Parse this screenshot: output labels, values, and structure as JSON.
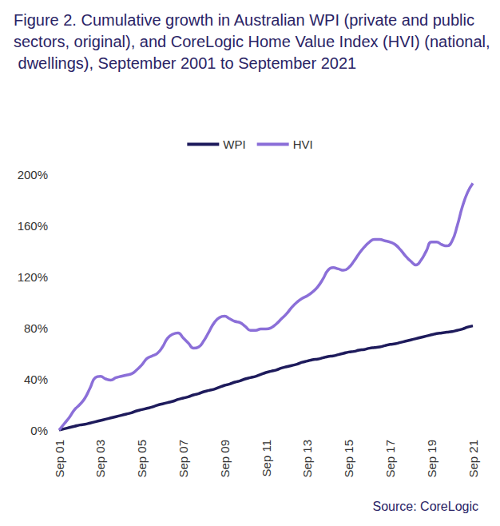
{
  "chart_data": {
    "type": "line",
    "title": "Figure 2. Cumulative growth in Australian WPI (private and public sectors, original), and CoreLogic Home Value Index (HVI) (national, dwellings), September 2001 to September 2021",
    "source": "Source: CoreLogic",
    "categories": [
      "Sep 01",
      null,
      null,
      null,
      null,
      null,
      null,
      null,
      "Sep 03",
      null,
      null,
      null,
      null,
      null,
      null,
      null,
      "Sep 05",
      null,
      null,
      null,
      null,
      null,
      null,
      null,
      "Sep 07",
      null,
      null,
      null,
      null,
      null,
      null,
      null,
      "Sep 09",
      null,
      null,
      null,
      null,
      null,
      null,
      null,
      "Sep 11",
      null,
      null,
      null,
      null,
      null,
      null,
      null,
      "Sep 13",
      null,
      null,
      null,
      null,
      null,
      null,
      null,
      "Sep 15",
      null,
      null,
      null,
      null,
      null,
      null,
      null,
      "Sep 17",
      null,
      null,
      null,
      null,
      null,
      null,
      null,
      "Sep 19",
      null,
      null,
      null,
      null,
      null,
      null,
      null,
      "Sep 21"
    ],
    "series": [
      {
        "name": "WPI",
        "color": "#1e1b5c",
        "values": [
          0,
          1,
          2,
          3,
          4,
          4.5,
          5.5,
          6.5,
          7.5,
          8.5,
          9.5,
          10.5,
          11.5,
          12.5,
          13.5,
          15,
          16,
          17,
          18,
          19.5,
          20.5,
          21.5,
          22.5,
          24,
          25,
          26,
          27.5,
          28.5,
          30,
          31,
          32,
          33.5,
          35,
          36,
          37.5,
          38.5,
          40,
          41,
          42,
          43.5,
          45,
          46,
          47,
          48.5,
          49.5,
          50.5,
          51.5,
          53,
          54,
          55,
          55.5,
          56.5,
          57.5,
          58,
          59,
          60,
          61,
          61.5,
          62.5,
          63,
          64,
          64.5,
          65,
          66,
          67,
          67.5,
          68.5,
          69.5,
          70.5,
          71.5,
          72.5,
          73.5,
          74.5,
          75.5,
          76,
          76.5,
          77,
          78,
          79,
          80.5,
          81.5
        ]
      },
      {
        "name": "HVI",
        "color": "#8b6fd8",
        "values": [
          0,
          5,
          10,
          16,
          20,
          25,
          33,
          41,
          42,
          40,
          39,
          41,
          42,
          43,
          44,
          47,
          51,
          56,
          58,
          60,
          65,
          72,
          75,
          76,
          72,
          68,
          64,
          65,
          70,
          77,
          84,
          88,
          89,
          87,
          85,
          84,
          81,
          78,
          78,
          79,
          79,
          80,
          83,
          87,
          91,
          96,
          100,
          103,
          105,
          108,
          112,
          118,
          125,
          127,
          126,
          125,
          127,
          132,
          138,
          143,
          147,
          149,
          149,
          148,
          147,
          145,
          141,
          136,
          132,
          129,
          133,
          140,
          147,
          147,
          145,
          144,
          148,
          160,
          175,
          186,
          193
        ]
      }
    ],
    "ylim": [
      0,
      200
    ],
    "yticks": [
      {
        "value": 0,
        "label": "0%"
      },
      {
        "value": 40,
        "label": "40%"
      },
      {
        "value": 80,
        "label": "80%"
      },
      {
        "value": 120,
        "label": "120%"
      },
      {
        "value": 160,
        "label": "160%"
      },
      {
        "value": 200,
        "label": "200%"
      }
    ],
    "grid": false,
    "legend": "top"
  }
}
